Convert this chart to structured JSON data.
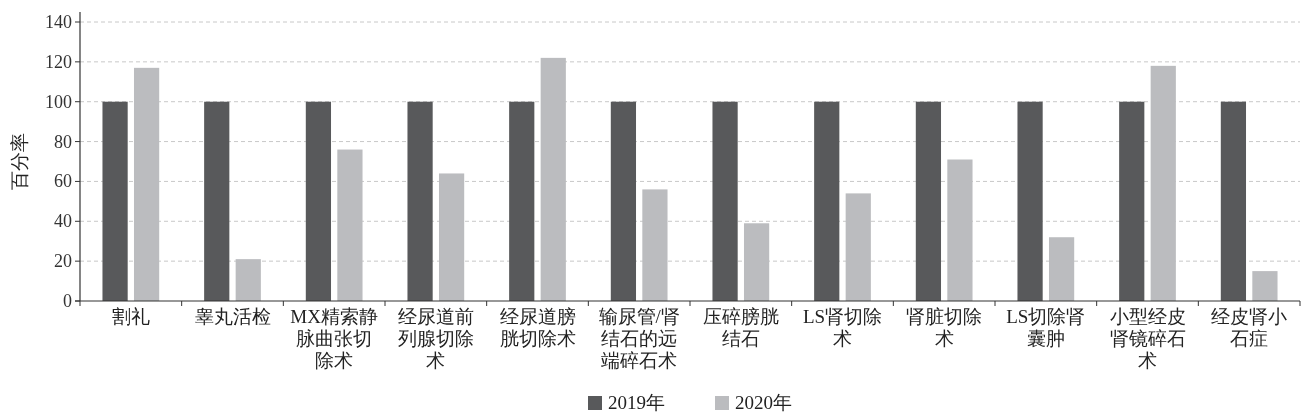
{
  "chart_data": {
    "type": "bar",
    "ylabel": "百分率",
    "categories": [
      "割礼",
      "睾丸活检",
      "MX精索静脉曲张切除术",
      "经尿道前列腺切除术",
      "经尿道膀胱切除术",
      "输尿管/肾结石的远端碎石术",
      "压碎膀胱结石",
      "LS肾切除术",
      "肾脏切除术",
      "LS切除肾囊肿",
      "小型经皮肾镜碎石术",
      "经皮肾小石症"
    ],
    "series": [
      {
        "name": "2019年",
        "color": "#58595b",
        "values": [
          100,
          100,
          100,
          100,
          100,
          100,
          100,
          100,
          100,
          100,
          100,
          100
        ]
      },
      {
        "name": "2020年",
        "color": "#bbbcbf",
        "values": [
          117,
          21,
          76,
          64,
          122,
          56,
          39,
          54,
          71,
          32,
          118,
          15
        ]
      }
    ],
    "ylim": [
      0,
      140
    ],
    "yticks": [
      0,
      20,
      40,
      60,
      80,
      100,
      120,
      140
    ],
    "grid": "y",
    "legend": "bottom"
  }
}
